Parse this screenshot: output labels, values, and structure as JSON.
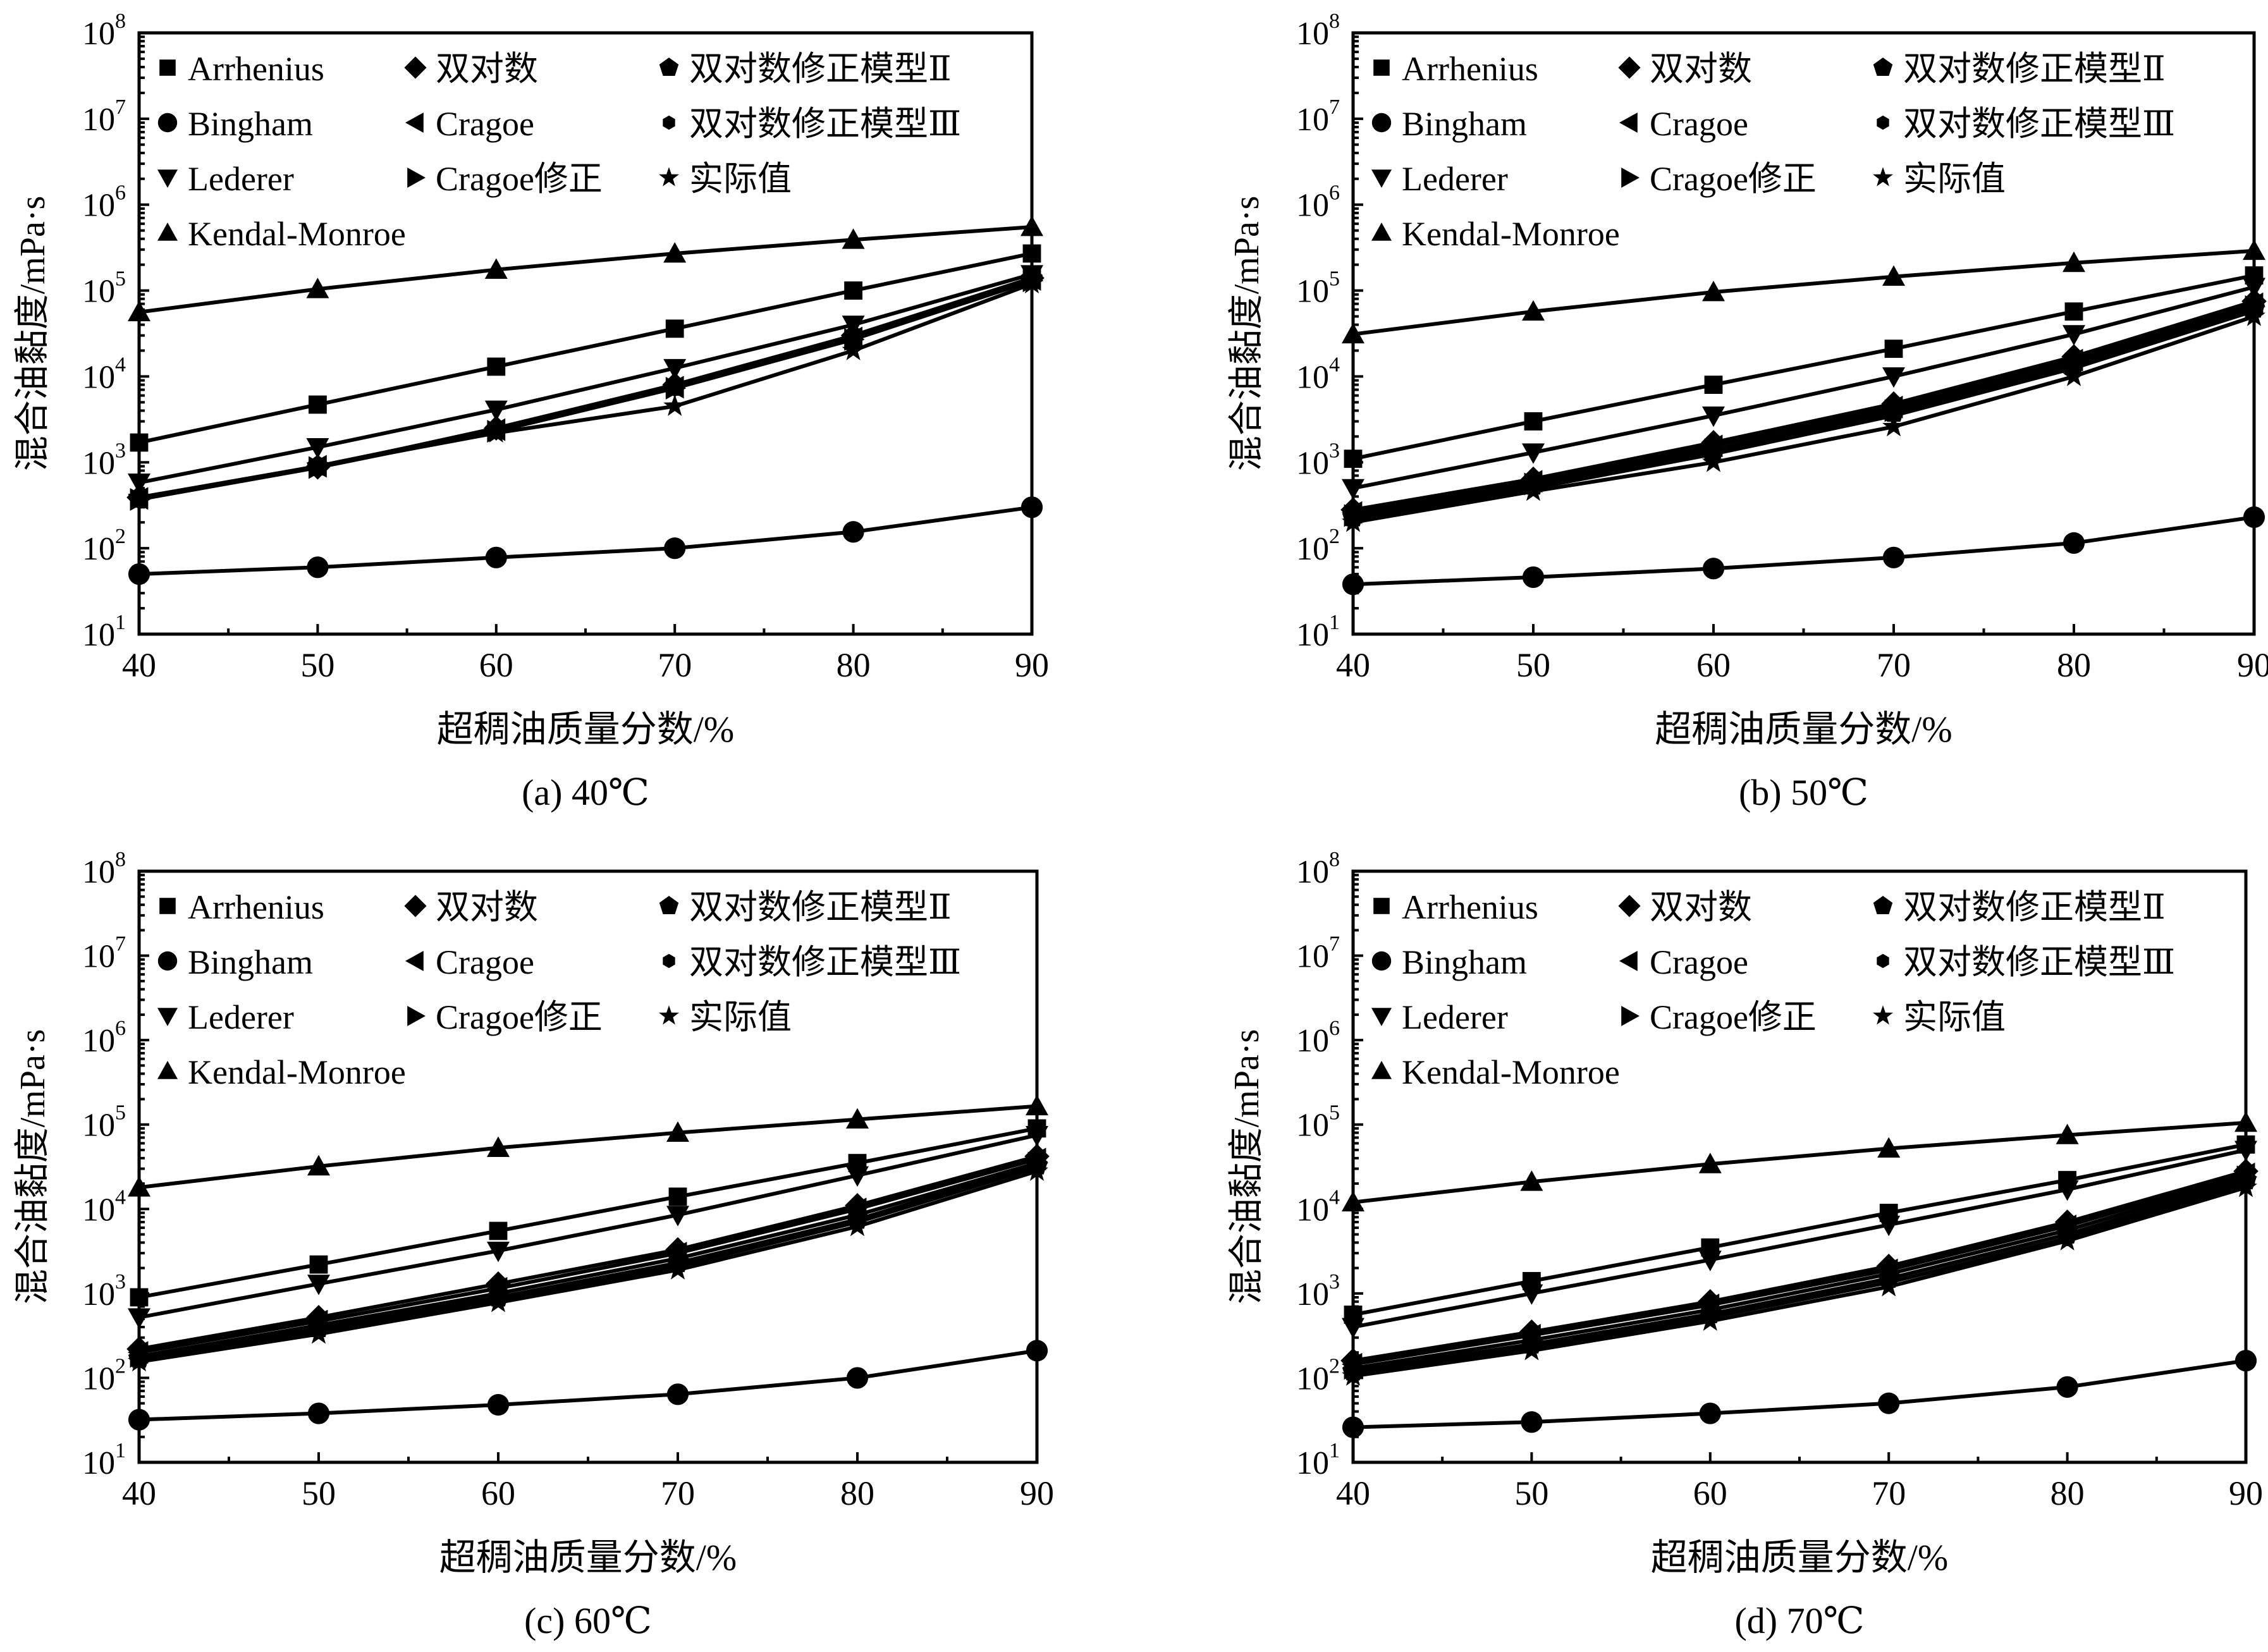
{
  "figure": {
    "ylabel": "混合油黏度/mPa·s",
    "xlabel": "超稠油质量分数/%"
  },
  "chart_data": [
    {
      "type": "line",
      "title": "(a) 40℃",
      "xlabel": "超稠油质量分数/%",
      "ylabel": "混合油黏度/mPa·s",
      "yscale": "log",
      "x": [
        40,
        50,
        60,
        70,
        80,
        90
      ],
      "xlim": [
        40,
        90
      ],
      "ylim": [
        10,
        100000000
      ],
      "xticks": [
        "40",
        "50",
        "60",
        "70",
        "80",
        "90"
      ],
      "yticks": [
        {
          "base": "10",
          "exp": "1"
        },
        {
          "base": "10",
          "exp": "2"
        },
        {
          "base": "10",
          "exp": "3"
        },
        {
          "base": "10",
          "exp": "4"
        },
        {
          "base": "10",
          "exp": "5"
        },
        {
          "base": "10",
          "exp": "6"
        },
        {
          "base": "10",
          "exp": "7"
        },
        {
          "base": "10",
          "exp": "8"
        }
      ],
      "series": [
        {
          "name": "Arrhenius",
          "marker": "square",
          "values": [
            1700,
            4700,
            13000,
            36000,
            100000,
            270000
          ]
        },
        {
          "name": "Bingham",
          "marker": "circle",
          "values": [
            50,
            60,
            78,
            100,
            155,
            300
          ]
        },
        {
          "name": "Lederer",
          "marker": "triangle-down",
          "values": [
            580,
            1500,
            4100,
            12500,
            40000,
            155000
          ]
        },
        {
          "name": "Kendal-Monroe",
          "marker": "triangle-up",
          "values": [
            56000,
            104000,
            175000,
            270000,
            390000,
            550000
          ]
        },
        {
          "name": "双对数",
          "marker": "diamond",
          "values": [
            390,
            880,
            2500,
            8000,
            30000,
            140000
          ]
        },
        {
          "name": "Cragoe",
          "marker": "triangle-left",
          "values": [
            380,
            900,
            2400,
            7500,
            28000,
            135000
          ]
        },
        {
          "name": "Cragoe修正",
          "marker": "triangle-right",
          "values": [
            370,
            870,
            2300,
            7300,
            27000,
            130000
          ]
        },
        {
          "name": "双对数修正模型Ⅱ",
          "marker": "pentagon",
          "values": [
            380,
            900,
            2400,
            7600,
            28000,
            138000
          ]
        },
        {
          "name": "双对数修正模型Ⅲ",
          "marker": "hexagon",
          "values": [
            380,
            890,
            2350,
            7400,
            27500,
            133000
          ]
        },
        {
          "name": "实际值",
          "marker": "star",
          "values": [
            390,
            900,
            2200,
            4500,
            20000,
            120000
          ]
        }
      ]
    },
    {
      "type": "line",
      "title": "(b) 50℃",
      "xlabel": "超稠油质量分数/%",
      "ylabel": "混合油黏度/mPa·s",
      "yscale": "log",
      "x": [
        40,
        50,
        60,
        70,
        80,
        90
      ],
      "xlim": [
        40,
        90
      ],
      "ylim": [
        10,
        100000000
      ],
      "xticks": [
        "40",
        "50",
        "60",
        "70",
        "80",
        "90"
      ],
      "yticks": [
        {
          "base": "10",
          "exp": "1"
        },
        {
          "base": "10",
          "exp": "2"
        },
        {
          "base": "10",
          "exp": "3"
        },
        {
          "base": "10",
          "exp": "4"
        },
        {
          "base": "10",
          "exp": "5"
        },
        {
          "base": "10",
          "exp": "6"
        },
        {
          "base": "10",
          "exp": "7"
        },
        {
          "base": "10",
          "exp": "8"
        }
      ],
      "series": [
        {
          "name": "Arrhenius",
          "marker": "square",
          "values": [
            1100,
            3000,
            8000,
            21000,
            57000,
            150000
          ]
        },
        {
          "name": "Bingham",
          "marker": "circle",
          "values": [
            38,
            46,
            58,
            78,
            115,
            230
          ]
        },
        {
          "name": "Lederer",
          "marker": "triangle-down",
          "values": [
            500,
            1300,
            3500,
            10000,
            31000,
            110000
          ]
        },
        {
          "name": "Kendal-Monroe",
          "marker": "triangle-up",
          "values": [
            31000,
            57000,
            96000,
            145000,
            210000,
            290000
          ]
        },
        {
          "name": "双对数",
          "marker": "diamond",
          "values": [
            280,
            640,
            1700,
            4800,
            17000,
            75000
          ]
        },
        {
          "name": "Cragoe",
          "marker": "triangle-left",
          "values": [
            260,
            600,
            1550,
            4400,
            15500,
            70000
          ]
        },
        {
          "name": "Cragoe修正",
          "marker": "triangle-right",
          "values": [
            240,
            560,
            1400,
            4000,
            14000,
            65000
          ]
        },
        {
          "name": "双对数修正模型Ⅱ",
          "marker": "pentagon",
          "values": [
            230,
            540,
            1350,
            3800,
            13500,
            62000
          ]
        },
        {
          "name": "双对数修正模型Ⅲ",
          "marker": "hexagon",
          "values": [
            210,
            500,
            1250,
            3500,
            12500,
            58000
          ]
        },
        {
          "name": "实际值",
          "marker": "star",
          "values": [
            200,
            460,
            1000,
            2600,
            10000,
            50000
          ]
        }
      ]
    },
    {
      "type": "line",
      "title": "(c) 60℃",
      "xlabel": "超稠油质量分数/%",
      "ylabel": "混合油黏度/mPa·s",
      "yscale": "log",
      "x": [
        40,
        50,
        60,
        70,
        80,
        90
      ],
      "xlim": [
        40,
        90
      ],
      "ylim": [
        10,
        100000000
      ],
      "xticks": [
        "40",
        "50",
        "60",
        "70",
        "80",
        "90"
      ],
      "yticks": [
        {
          "base": "10",
          "exp": "1"
        },
        {
          "base": "10",
          "exp": "2"
        },
        {
          "base": "10",
          "exp": "3"
        },
        {
          "base": "10",
          "exp": "4"
        },
        {
          "base": "10",
          "exp": "5"
        },
        {
          "base": "10",
          "exp": "6"
        },
        {
          "base": "10",
          "exp": "7"
        },
        {
          "base": "10",
          "exp": "8"
        }
      ],
      "series": [
        {
          "name": "Arrhenius",
          "marker": "square",
          "values": [
            900,
            2200,
            5500,
            14000,
            35000,
            90000
          ]
        },
        {
          "name": "Bingham",
          "marker": "circle",
          "values": [
            32,
            38,
            48,
            64,
            100,
            210
          ]
        },
        {
          "name": "Lederer",
          "marker": "triangle-down",
          "values": [
            520,
            1300,
            3200,
            8500,
            25000,
            75000
          ]
        },
        {
          "name": "Kendal-Monroe",
          "marker": "triangle-up",
          "values": [
            18000,
            32000,
            53000,
            80000,
            115000,
            165000
          ]
        },
        {
          "name": "双对数",
          "marker": "diamond",
          "values": [
            220,
            520,
            1300,
            3300,
            11000,
            42000
          ]
        },
        {
          "name": "Cragoe",
          "marker": "triangle-left",
          "values": [
            200,
            470,
            1150,
            3000,
            10000,
            39000
          ]
        },
        {
          "name": "Cragoe修正",
          "marker": "triangle-right",
          "values": [
            180,
            420,
            1000,
            2600,
            8500,
            35000
          ]
        },
        {
          "name": "双对数修正模型Ⅱ",
          "marker": "pentagon",
          "values": [
            170,
            390,
            900,
            2300,
            7500,
            33000
          ]
        },
        {
          "name": "双对数修正模型Ⅲ",
          "marker": "hexagon",
          "values": [
            160,
            360,
            850,
            2100,
            7000,
            31000
          ]
        },
        {
          "name": "实际值",
          "marker": "star",
          "values": [
            155,
            330,
            780,
            1900,
            6200,
            28000
          ]
        }
      ]
    },
    {
      "type": "line",
      "title": "(d) 70℃",
      "xlabel": "超稠油质量分数/%",
      "ylabel": "混合油黏度/mPa·s",
      "yscale": "log",
      "x": [
        40,
        50,
        60,
        70,
        80,
        90
      ],
      "xlim": [
        40,
        90
      ],
      "ylim": [
        10,
        100000000
      ],
      "xticks": [
        "40",
        "50",
        "60",
        "70",
        "80",
        "90"
      ],
      "yticks": [
        {
          "base": "10",
          "exp": "1"
        },
        {
          "base": "10",
          "exp": "2"
        },
        {
          "base": "10",
          "exp": "3"
        },
        {
          "base": "10",
          "exp": "4"
        },
        {
          "base": "10",
          "exp": "5"
        },
        {
          "base": "10",
          "exp": "6"
        },
        {
          "base": "10",
          "exp": "7"
        },
        {
          "base": "10",
          "exp": "8"
        }
      ],
      "series": [
        {
          "name": "Arrhenius",
          "marker": "square",
          "values": [
            560,
            1400,
            3500,
            9000,
            22000,
            58000
          ]
        },
        {
          "name": "Bingham",
          "marker": "circle",
          "values": [
            26,
            30,
            38,
            50,
            78,
            160
          ]
        },
        {
          "name": "Lederer",
          "marker": "triangle-down",
          "values": [
            400,
            1000,
            2500,
            6500,
            17000,
            50000
          ]
        },
        {
          "name": "Kendal-Monroe",
          "marker": "triangle-up",
          "values": [
            12000,
            21000,
            34000,
            52000,
            75000,
            105000
          ]
        },
        {
          "name": "双对数",
          "marker": "diamond",
          "values": [
            160,
            350,
            800,
            2100,
            7000,
            28000
          ]
        },
        {
          "name": "Cragoe",
          "marker": "triangle-left",
          "values": [
            145,
            320,
            730,
            1900,
            6300,
            26000
          ]
        },
        {
          "name": "Cragoe修正",
          "marker": "triangle-right",
          "values": [
            130,
            280,
            640,
            1700,
            5600,
            24000
          ]
        },
        {
          "name": "双对数修正模型Ⅱ",
          "marker": "pentagon",
          "values": [
            120,
            250,
            570,
            1500,
            5000,
            22000
          ]
        },
        {
          "name": "双对数修正模型Ⅲ",
          "marker": "hexagon",
          "values": [
            110,
            230,
            520,
            1350,
            4500,
            20000
          ]
        },
        {
          "name": "实际值",
          "marker": "star",
          "values": [
            105,
            210,
            470,
            1200,
            4200,
            18000
          ]
        }
      ]
    }
  ]
}
